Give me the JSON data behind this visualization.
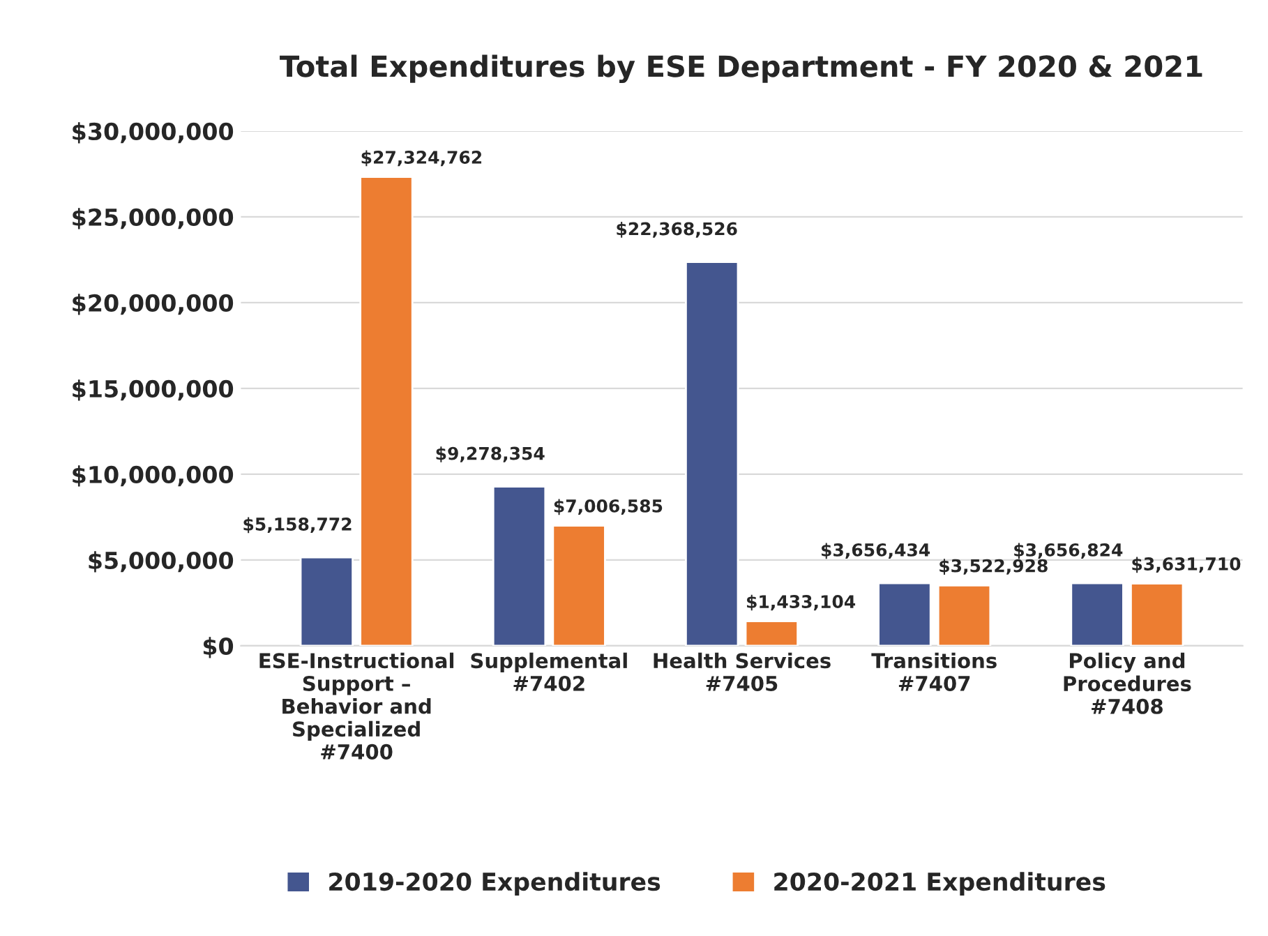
{
  "chart_data": {
    "type": "bar",
    "title": "Total Expenditures by ESE Department - FY 2020 & 2021",
    "categories": [
      "ESE-Instructional\nSupport –\nBehavior and\nSpecialized\n#7400",
      "Supplemental\n#7402",
      "Health Services\n#7405",
      "Transitions\n#7407",
      "Policy and\nProcedures\n#7408"
    ],
    "series": [
      {
        "name": "2019-2020 Expenditures",
        "color": "#44568f",
        "values": [
          5158772,
          9278354,
          22368526,
          3656434,
          3656824
        ],
        "value_labels": [
          "$5,158,772",
          "$9,278,354",
          "$22,368,526",
          "$3,656,434",
          "$3,656,824"
        ]
      },
      {
        "name": "2020-2021 Expenditures",
        "color": "#ed7d31",
        "values": [
          27324762,
          7006585,
          1433104,
          3522928,
          3631710
        ],
        "value_labels": [
          "$27,324,762",
          "$7,006,585",
          "$1,433,104",
          "$3,522,928",
          "$3,631,710"
        ]
      }
    ],
    "ylim": [
      0,
      30000000
    ],
    "yticks": [
      {
        "value": 0,
        "label": "$0"
      },
      {
        "value": 5000000,
        "label": "$5,000,000"
      },
      {
        "value": 10000000,
        "label": "$10,000,000"
      },
      {
        "value": 15000000,
        "label": "$15,000,000"
      },
      {
        "value": 20000000,
        "label": "$20,000,000"
      },
      {
        "value": 25000000,
        "label": "$25,000,000"
      },
      {
        "value": 30000000,
        "label": "$30,000,000"
      }
    ],
    "grid": "y",
    "legend": "bottom"
  }
}
